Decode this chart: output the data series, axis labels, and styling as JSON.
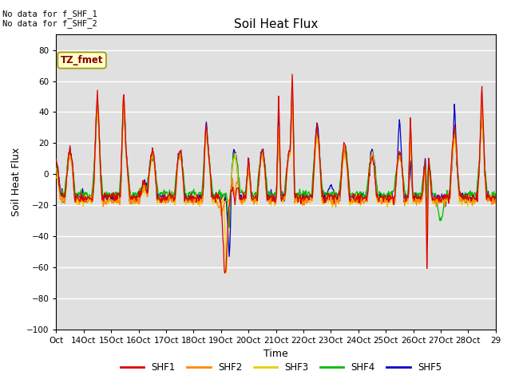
{
  "title": "Soil Heat Flux",
  "ylabel": "Soil Heat Flux",
  "xlabel": "Time",
  "ylim": [
    -100,
    90
  ],
  "yticks": [
    -100,
    -80,
    -60,
    -40,
    -20,
    0,
    20,
    40,
    60,
    80
  ],
  "xtick_labels": [
    "Oct",
    "14Oct",
    "15Oct",
    "16Oct",
    "17Oct",
    "18Oct",
    "19Oct",
    "20Oct",
    "21Oct",
    "22Oct",
    "23Oct",
    "24Oct",
    "25Oct",
    "26Oct",
    "27Oct",
    "28Oct",
    "29"
  ],
  "colors": {
    "SHF1": "#dd0000",
    "SHF2": "#ff8800",
    "SHF3": "#eecc00",
    "SHF4": "#00bb00",
    "SHF5": "#0000cc"
  },
  "annotation_text": "No data for f_SHF_1\nNo data for f_SHF_2",
  "legend_label": "TZ_fmet",
  "background_plot": "#e0e0e0",
  "background_fig": "#ffffff",
  "n_days": 16,
  "n_per_day": 48
}
